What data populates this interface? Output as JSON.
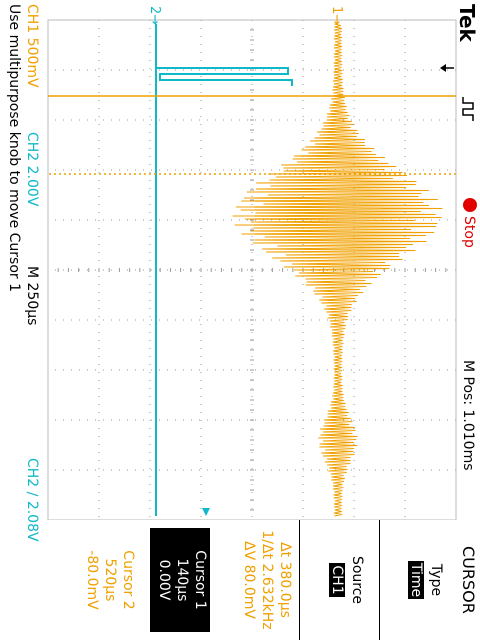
{
  "header": {
    "brand": "Tek",
    "trigger_glyph": "⌠⌡",
    "run_state": "Stop",
    "mpos": "M Pos: 1.010ms",
    "menu_title": "CURSOR"
  },
  "footer": {
    "ch1": "CH1  500mV",
    "ch2": "CH2  2.00V",
    "timebase": "M 250µs",
    "trigger": "CH2 ∕ 2.08V",
    "hint": "Use multipurpose knob to move Cursor 1"
  },
  "menu": {
    "type_label": "Type",
    "type_value": "Time",
    "source_label": "Source",
    "source_value": "CH1",
    "delta_t": "Δt 380.0µs",
    "inv_delta_t": "1/Δt 2.632kHz",
    "delta_v": "ΔV 80.0mV",
    "cursor1_label": "Cursor 1",
    "cursor1_time": "140µs",
    "cursor1_value": "0.00V",
    "cursor2_label": "Cursor 2",
    "cursor2_time": "520µs",
    "cursor2_value": "-80.0mV"
  },
  "markers": {
    "ch1": "1",
    "ch2": "2"
  },
  "colors": {
    "ch1": "#f0a000",
    "ch2": "#10b8c8",
    "grid": "#999999",
    "stop": "#e00000"
  }
}
